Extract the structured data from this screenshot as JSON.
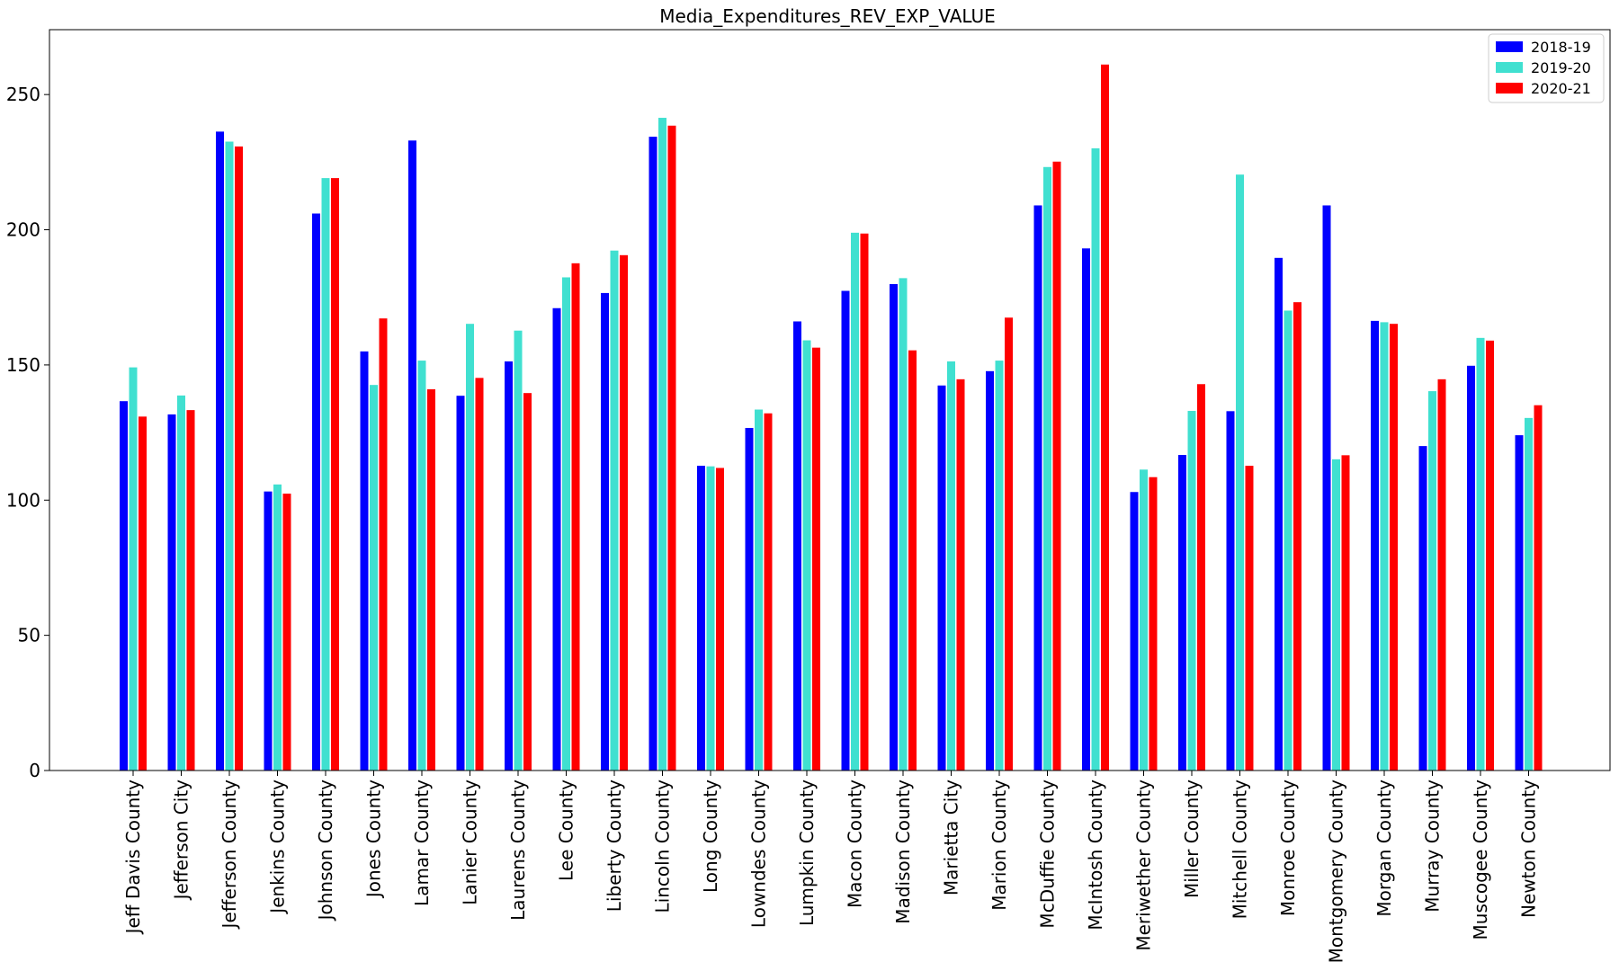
{
  "chart_data": {
    "type": "bar",
    "title": "Media_Expenditures_REV_EXP_VALUE",
    "xlabel": "",
    "ylabel": "",
    "ylim": [
      0,
      274
    ],
    "yticks": [
      0,
      50,
      100,
      150,
      200,
      250
    ],
    "grid": false,
    "legend_position": "top-right",
    "categories": [
      "Jeff Davis County",
      "Jefferson City",
      "Jefferson County",
      "Jenkins County",
      "Johnson County",
      "Jones County",
      "Lamar County",
      "Lanier County",
      "Laurens County",
      "Lee County",
      "Liberty County",
      "Lincoln County",
      "Long County",
      "Lowndes County",
      "Lumpkin County",
      "Macon County",
      "Madison County",
      "Marietta City",
      "Marion County",
      "McDuffie County",
      "McIntosh County",
      "Meriwether County",
      "Miller County",
      "Mitchell County",
      "Monroe County",
      "Montgomery County",
      "Morgan County",
      "Murray County",
      "Muscogee County",
      "Newton County"
    ],
    "series": [
      {
        "name": "2018-19",
        "color": "#0000ff",
        "values": [
          136.6,
          131.7,
          236.3,
          103.2,
          206.0,
          155.0,
          233.0,
          138.6,
          151.3,
          171.0,
          176.6,
          234.4,
          112.7,
          126.7,
          166.1,
          177.4,
          179.9,
          142.4,
          147.7,
          209.0,
          193.1,
          103.0,
          116.7,
          132.9,
          189.6,
          209.0,
          166.3,
          120.0,
          149.7,
          124.0
        ]
      },
      {
        "name": "2019-20",
        "color": "#40e0d0",
        "values": [
          149.1,
          138.7,
          232.6,
          105.8,
          219.1,
          142.6,
          151.6,
          165.2,
          162.7,
          182.4,
          192.3,
          241.4,
          112.5,
          133.5,
          159.1,
          198.9,
          182.1,
          151.3,
          151.6,
          223.2,
          230.1,
          111.3,
          133.0,
          220.4,
          170.1,
          115.1,
          165.8,
          140.3,
          160.0,
          130.4
        ]
      },
      {
        "name": "2020-21",
        "color": "#ff0000",
        "values": [
          130.9,
          133.3,
          230.8,
          102.4,
          219.1,
          167.2,
          141.0,
          145.2,
          139.6,
          187.6,
          190.6,
          238.5,
          111.9,
          132.1,
          156.4,
          198.6,
          155.4,
          144.7,
          167.5,
          225.2,
          261.1,
          108.5,
          142.9,
          112.7,
          173.2,
          116.6,
          165.2,
          144.7,
          159.0,
          135.1
        ]
      }
    ]
  }
}
